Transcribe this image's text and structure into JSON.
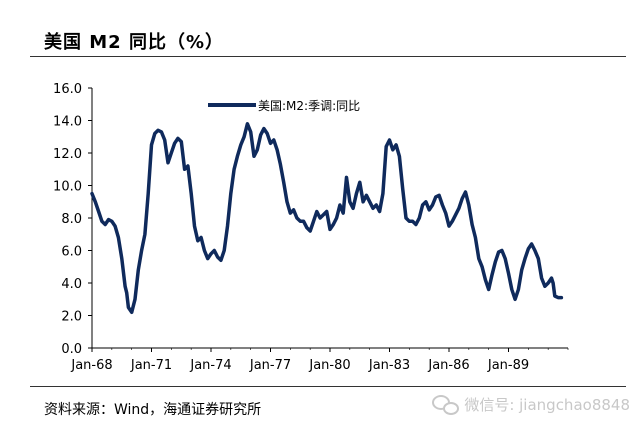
{
  "header": {
    "title": "美国 M2 同比（%）"
  },
  "footer": {
    "source": "资料来源：Wind，海通证券研究所",
    "watermark": "微信号: jiangchao8848"
  },
  "colors": {
    "line": "#0f2a5c",
    "axis": "#000000",
    "rule": "#333333"
  },
  "chart_data": {
    "type": "line",
    "title": "",
    "xlabel": "",
    "ylabel": "",
    "ylim": [
      0,
      16
    ],
    "yticks": [
      "0.0",
      "2.0",
      "4.0",
      "6.0",
      "8.0",
      "10.0",
      "12.0",
      "14.0",
      "16.0"
    ],
    "xlim": [
      "1968-01",
      "1992-01"
    ],
    "xticks": [
      "Jan-68",
      "Jan-71",
      "Jan-74",
      "Jan-77",
      "Jan-80",
      "Jan-83",
      "Jan-86",
      "Jan-89"
    ],
    "grid": false,
    "legend": "top-center",
    "series": [
      {
        "name": "美国:M2:季调:同比",
        "color": "#0f2a5c",
        "points": [
          [
            "1968-01",
            9.5
          ],
          [
            "1968-03",
            9.0
          ],
          [
            "1968-05",
            8.4
          ],
          [
            "1968-07",
            7.8
          ],
          [
            "1968-09",
            7.6
          ],
          [
            "1968-11",
            7.9
          ],
          [
            "1969-01",
            7.8
          ],
          [
            "1969-03",
            7.5
          ],
          [
            "1969-05",
            6.8
          ],
          [
            "1969-07",
            5.5
          ],
          [
            "1969-09",
            3.8
          ],
          [
            "1969-10",
            3.4
          ],
          [
            "1969-11",
            2.5
          ],
          [
            "1970-01",
            2.2
          ],
          [
            "1970-03",
            3.0
          ],
          [
            "1970-05",
            4.8
          ],
          [
            "1970-07",
            6.0
          ],
          [
            "1970-09",
            7.0
          ],
          [
            "1970-11",
            9.5
          ],
          [
            "1971-01",
            12.5
          ],
          [
            "1971-03",
            13.2
          ],
          [
            "1971-05",
            13.4
          ],
          [
            "1971-07",
            13.3
          ],
          [
            "1971-09",
            12.8
          ],
          [
            "1971-11",
            11.4
          ],
          [
            "1972-01",
            12.0
          ],
          [
            "1972-03",
            12.6
          ],
          [
            "1972-05",
            12.9
          ],
          [
            "1972-07",
            12.7
          ],
          [
            "1972-09",
            11.0
          ],
          [
            "1972-11",
            11.2
          ],
          [
            "1973-01",
            9.5
          ],
          [
            "1973-03",
            7.5
          ],
          [
            "1973-05",
            6.6
          ],
          [
            "1973-07",
            6.8
          ],
          [
            "1973-09",
            6.0
          ],
          [
            "1973-11",
            5.5
          ],
          [
            "1974-01",
            5.8
          ],
          [
            "1974-03",
            6.0
          ],
          [
            "1974-05",
            5.6
          ],
          [
            "1974-07",
            5.4
          ],
          [
            "1974-09",
            6.0
          ],
          [
            "1974-11",
            7.5
          ],
          [
            "1975-01",
            9.5
          ],
          [
            "1975-03",
            11.0
          ],
          [
            "1975-05",
            11.8
          ],
          [
            "1975-07",
            12.5
          ],
          [
            "1975-09",
            13.0
          ],
          [
            "1975-11",
            13.8
          ],
          [
            "1976-01",
            13.3
          ],
          [
            "1976-03",
            11.8
          ],
          [
            "1976-05",
            12.2
          ],
          [
            "1976-07",
            13.1
          ],
          [
            "1976-09",
            13.5
          ],
          [
            "1976-11",
            13.2
          ],
          [
            "1977-01",
            12.6
          ],
          [
            "1977-03",
            12.8
          ],
          [
            "1977-05",
            12.2
          ],
          [
            "1977-07",
            11.3
          ],
          [
            "1977-09",
            10.2
          ],
          [
            "1977-11",
            9.0
          ],
          [
            "1978-01",
            8.3
          ],
          [
            "1978-03",
            8.5
          ],
          [
            "1978-05",
            8.0
          ],
          [
            "1978-07",
            7.8
          ],
          [
            "1978-09",
            7.8
          ],
          [
            "1978-11",
            7.4
          ],
          [
            "1979-01",
            7.2
          ],
          [
            "1979-03",
            7.8
          ],
          [
            "1979-05",
            8.4
          ],
          [
            "1979-07",
            8.0
          ],
          [
            "1979-09",
            8.2
          ],
          [
            "1979-11",
            8.4
          ],
          [
            "1980-01",
            7.3
          ],
          [
            "1980-03",
            7.6
          ],
          [
            "1980-05",
            8.0
          ],
          [
            "1980-07",
            8.8
          ],
          [
            "1980-09",
            8.3
          ],
          [
            "1980-11",
            10.5
          ],
          [
            "1981-01",
            9.0
          ],
          [
            "1981-03",
            8.6
          ],
          [
            "1981-05",
            9.5
          ],
          [
            "1981-07",
            10.2
          ],
          [
            "1981-09",
            9.0
          ],
          [
            "1981-11",
            9.4
          ],
          [
            "1982-01",
            9.0
          ],
          [
            "1982-03",
            8.6
          ],
          [
            "1982-05",
            8.8
          ],
          [
            "1982-07",
            8.4
          ],
          [
            "1982-09",
            9.5
          ],
          [
            "1982-11",
            12.4
          ],
          [
            "1983-01",
            12.8
          ],
          [
            "1983-03",
            12.2
          ],
          [
            "1983-05",
            12.5
          ],
          [
            "1983-07",
            11.8
          ],
          [
            "1983-09",
            9.8
          ],
          [
            "1983-11",
            8.0
          ],
          [
            "1984-01",
            7.8
          ],
          [
            "1984-03",
            7.8
          ],
          [
            "1984-05",
            7.6
          ],
          [
            "1984-07",
            8.0
          ],
          [
            "1984-09",
            8.8
          ],
          [
            "1984-11",
            9.0
          ],
          [
            "1985-01",
            8.5
          ],
          [
            "1985-03",
            8.8
          ],
          [
            "1985-05",
            9.3
          ],
          [
            "1985-07",
            9.4
          ],
          [
            "1985-09",
            8.8
          ],
          [
            "1985-11",
            8.3
          ],
          [
            "1986-01",
            7.5
          ],
          [
            "1986-03",
            7.8
          ],
          [
            "1986-05",
            8.2
          ],
          [
            "1986-07",
            8.6
          ],
          [
            "1986-09",
            9.2
          ],
          [
            "1986-11",
            9.6
          ],
          [
            "1987-01",
            8.8
          ],
          [
            "1987-03",
            7.6
          ],
          [
            "1987-05",
            6.8
          ],
          [
            "1987-07",
            5.5
          ],
          [
            "1987-09",
            5.0
          ],
          [
            "1987-11",
            4.2
          ],
          [
            "1988-01",
            3.6
          ],
          [
            "1988-03",
            4.5
          ],
          [
            "1988-05",
            5.3
          ],
          [
            "1988-07",
            5.9
          ],
          [
            "1988-09",
            6.0
          ],
          [
            "1988-11",
            5.5
          ],
          [
            "1989-01",
            4.6
          ],
          [
            "1989-03",
            3.6
          ],
          [
            "1989-05",
            3.0
          ],
          [
            "1989-07",
            3.6
          ],
          [
            "1989-09",
            4.8
          ],
          [
            "1989-11",
            5.5
          ],
          [
            "1990-01",
            6.1
          ],
          [
            "1990-03",
            6.4
          ],
          [
            "1990-05",
            6.0
          ],
          [
            "1990-07",
            5.5
          ],
          [
            "1990-09",
            4.3
          ],
          [
            "1990-11",
            3.8
          ],
          [
            "1991-01",
            4.0
          ],
          [
            "1991-03",
            4.3
          ],
          [
            "1991-04",
            4.0
          ],
          [
            "1991-05",
            3.2
          ],
          [
            "1991-07",
            3.1
          ],
          [
            "1991-09",
            3.1
          ]
        ]
      }
    ]
  }
}
